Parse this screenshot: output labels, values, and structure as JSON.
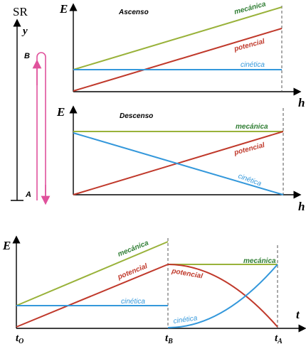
{
  "reference": {
    "frame": "SR",
    "axis": "y",
    "point_top": "B",
    "point_bottom": "A"
  },
  "panel_ascent": {
    "y_axis": "E",
    "x_axis": "h",
    "title": "Ascenso",
    "series": {
      "mechanical": "mecánica",
      "potential": "potencial",
      "kinetic": "cinética"
    }
  },
  "panel_descent": {
    "y_axis": "E",
    "x_axis": "h",
    "title": "Descenso",
    "series": {
      "mechanical": "mecánica",
      "potential": "potencial",
      "kinetic": "cinética"
    }
  },
  "panel_time": {
    "y_axis": "E",
    "x_axis": "t",
    "ticks": {
      "t0_main": "t",
      "t0_sub": "O",
      "tb_main": "t",
      "tb_sub": "B",
      "ta_main": "t",
      "ta_sub": "A"
    },
    "series": {
      "mechanical_left": "mecánica",
      "potential_left": "potencial",
      "kinetic_left": "cinética",
      "mechanical_right": "mecánica",
      "potential_right": "potencial",
      "kinetic_right": "cinética"
    }
  },
  "colors": {
    "mechanical": "#99b23a",
    "potential": "#c0392b",
    "kinetic": "#3498db",
    "path": "#e0529c",
    "label_green": "#2e7d32"
  }
}
